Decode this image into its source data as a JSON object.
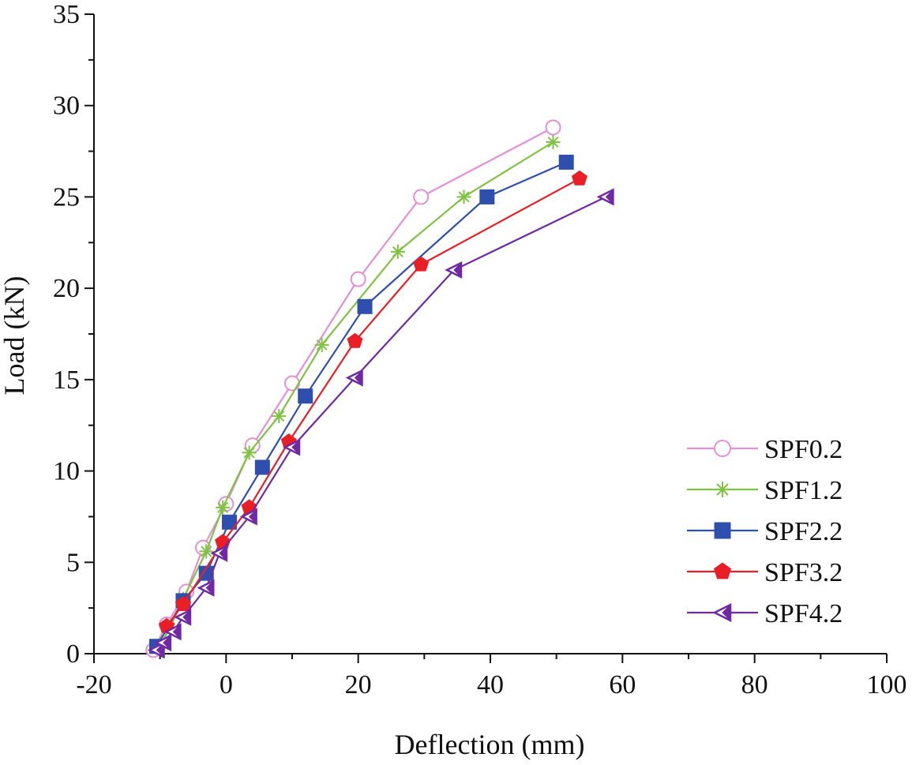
{
  "chart_data": {
    "type": "line",
    "title": "",
    "xlabel": "Deflection (mm)",
    "ylabel": "Load (kN)",
    "xlim": [
      -20,
      100
    ],
    "ylim": [
      0,
      35
    ],
    "xticks": [
      -20,
      0,
      20,
      40,
      60,
      80,
      100
    ],
    "yticks": [
      0,
      5,
      10,
      15,
      20,
      25,
      30,
      35
    ],
    "grid": false,
    "legend_position": "bottom-right",
    "series": [
      {
        "name": "SPF0.2",
        "color": "#e48fd6",
        "marker": "open-circle",
        "points": [
          [
            -11,
            0.2
          ],
          [
            -9,
            1.6
          ],
          [
            -6,
            3.4
          ],
          [
            -3.5,
            5.8
          ],
          [
            0,
            8.2
          ],
          [
            4,
            11.4
          ],
          [
            10,
            14.8
          ],
          [
            20,
            20.5
          ],
          [
            29.5,
            25
          ],
          [
            49.5,
            28.8
          ]
        ]
      },
      {
        "name": "SPF1.2",
        "color": "#80c242",
        "marker": "asterisk",
        "points": [
          [
            -10,
            0.5
          ],
          [
            -8.5,
            1.4
          ],
          [
            -6.5,
            3
          ],
          [
            -3,
            5.6
          ],
          [
            -0.5,
            8
          ],
          [
            3.5,
            11
          ],
          [
            8,
            13
          ],
          [
            14.5,
            16.9
          ],
          [
            26,
            22
          ],
          [
            36,
            25
          ],
          [
            49.5,
            28
          ]
        ]
      },
      {
        "name": "SPF2.2",
        "color": "#2f4fae",
        "marker": "square",
        "points": [
          [
            -10.5,
            0.4
          ],
          [
            -6.5,
            2.9
          ],
          [
            -3,
            4.4
          ],
          [
            0.5,
            7.2
          ],
          [
            5.5,
            10.2
          ],
          [
            12,
            14.1
          ],
          [
            21,
            19
          ],
          [
            39.5,
            25
          ],
          [
            51.5,
            26.9
          ]
        ]
      },
      {
        "name": "SPF3.2",
        "color": "#ea1f26",
        "marker": "pentagon",
        "points": [
          [
            -9,
            1.5
          ],
          [
            -6.5,
            2.7
          ],
          [
            -0.5,
            6.1
          ],
          [
            3.5,
            8
          ],
          [
            9.5,
            11.6
          ],
          [
            19.5,
            17.1
          ],
          [
            29.5,
            21.3
          ],
          [
            53.5,
            26
          ]
        ]
      },
      {
        "name": "SPF4.2",
        "color": "#6f2aa3",
        "marker": "left-triangle",
        "points": [
          [
            -10.5,
            0.2
          ],
          [
            -9.5,
            0.6
          ],
          [
            -8,
            1.2
          ],
          [
            -6.5,
            2
          ],
          [
            -3,
            3.6
          ],
          [
            -1,
            5.5
          ],
          [
            3.5,
            7.5
          ],
          [
            10,
            11.3
          ],
          [
            19.5,
            15.1
          ],
          [
            34.5,
            21
          ],
          [
            57.5,
            25
          ]
        ]
      }
    ]
  }
}
